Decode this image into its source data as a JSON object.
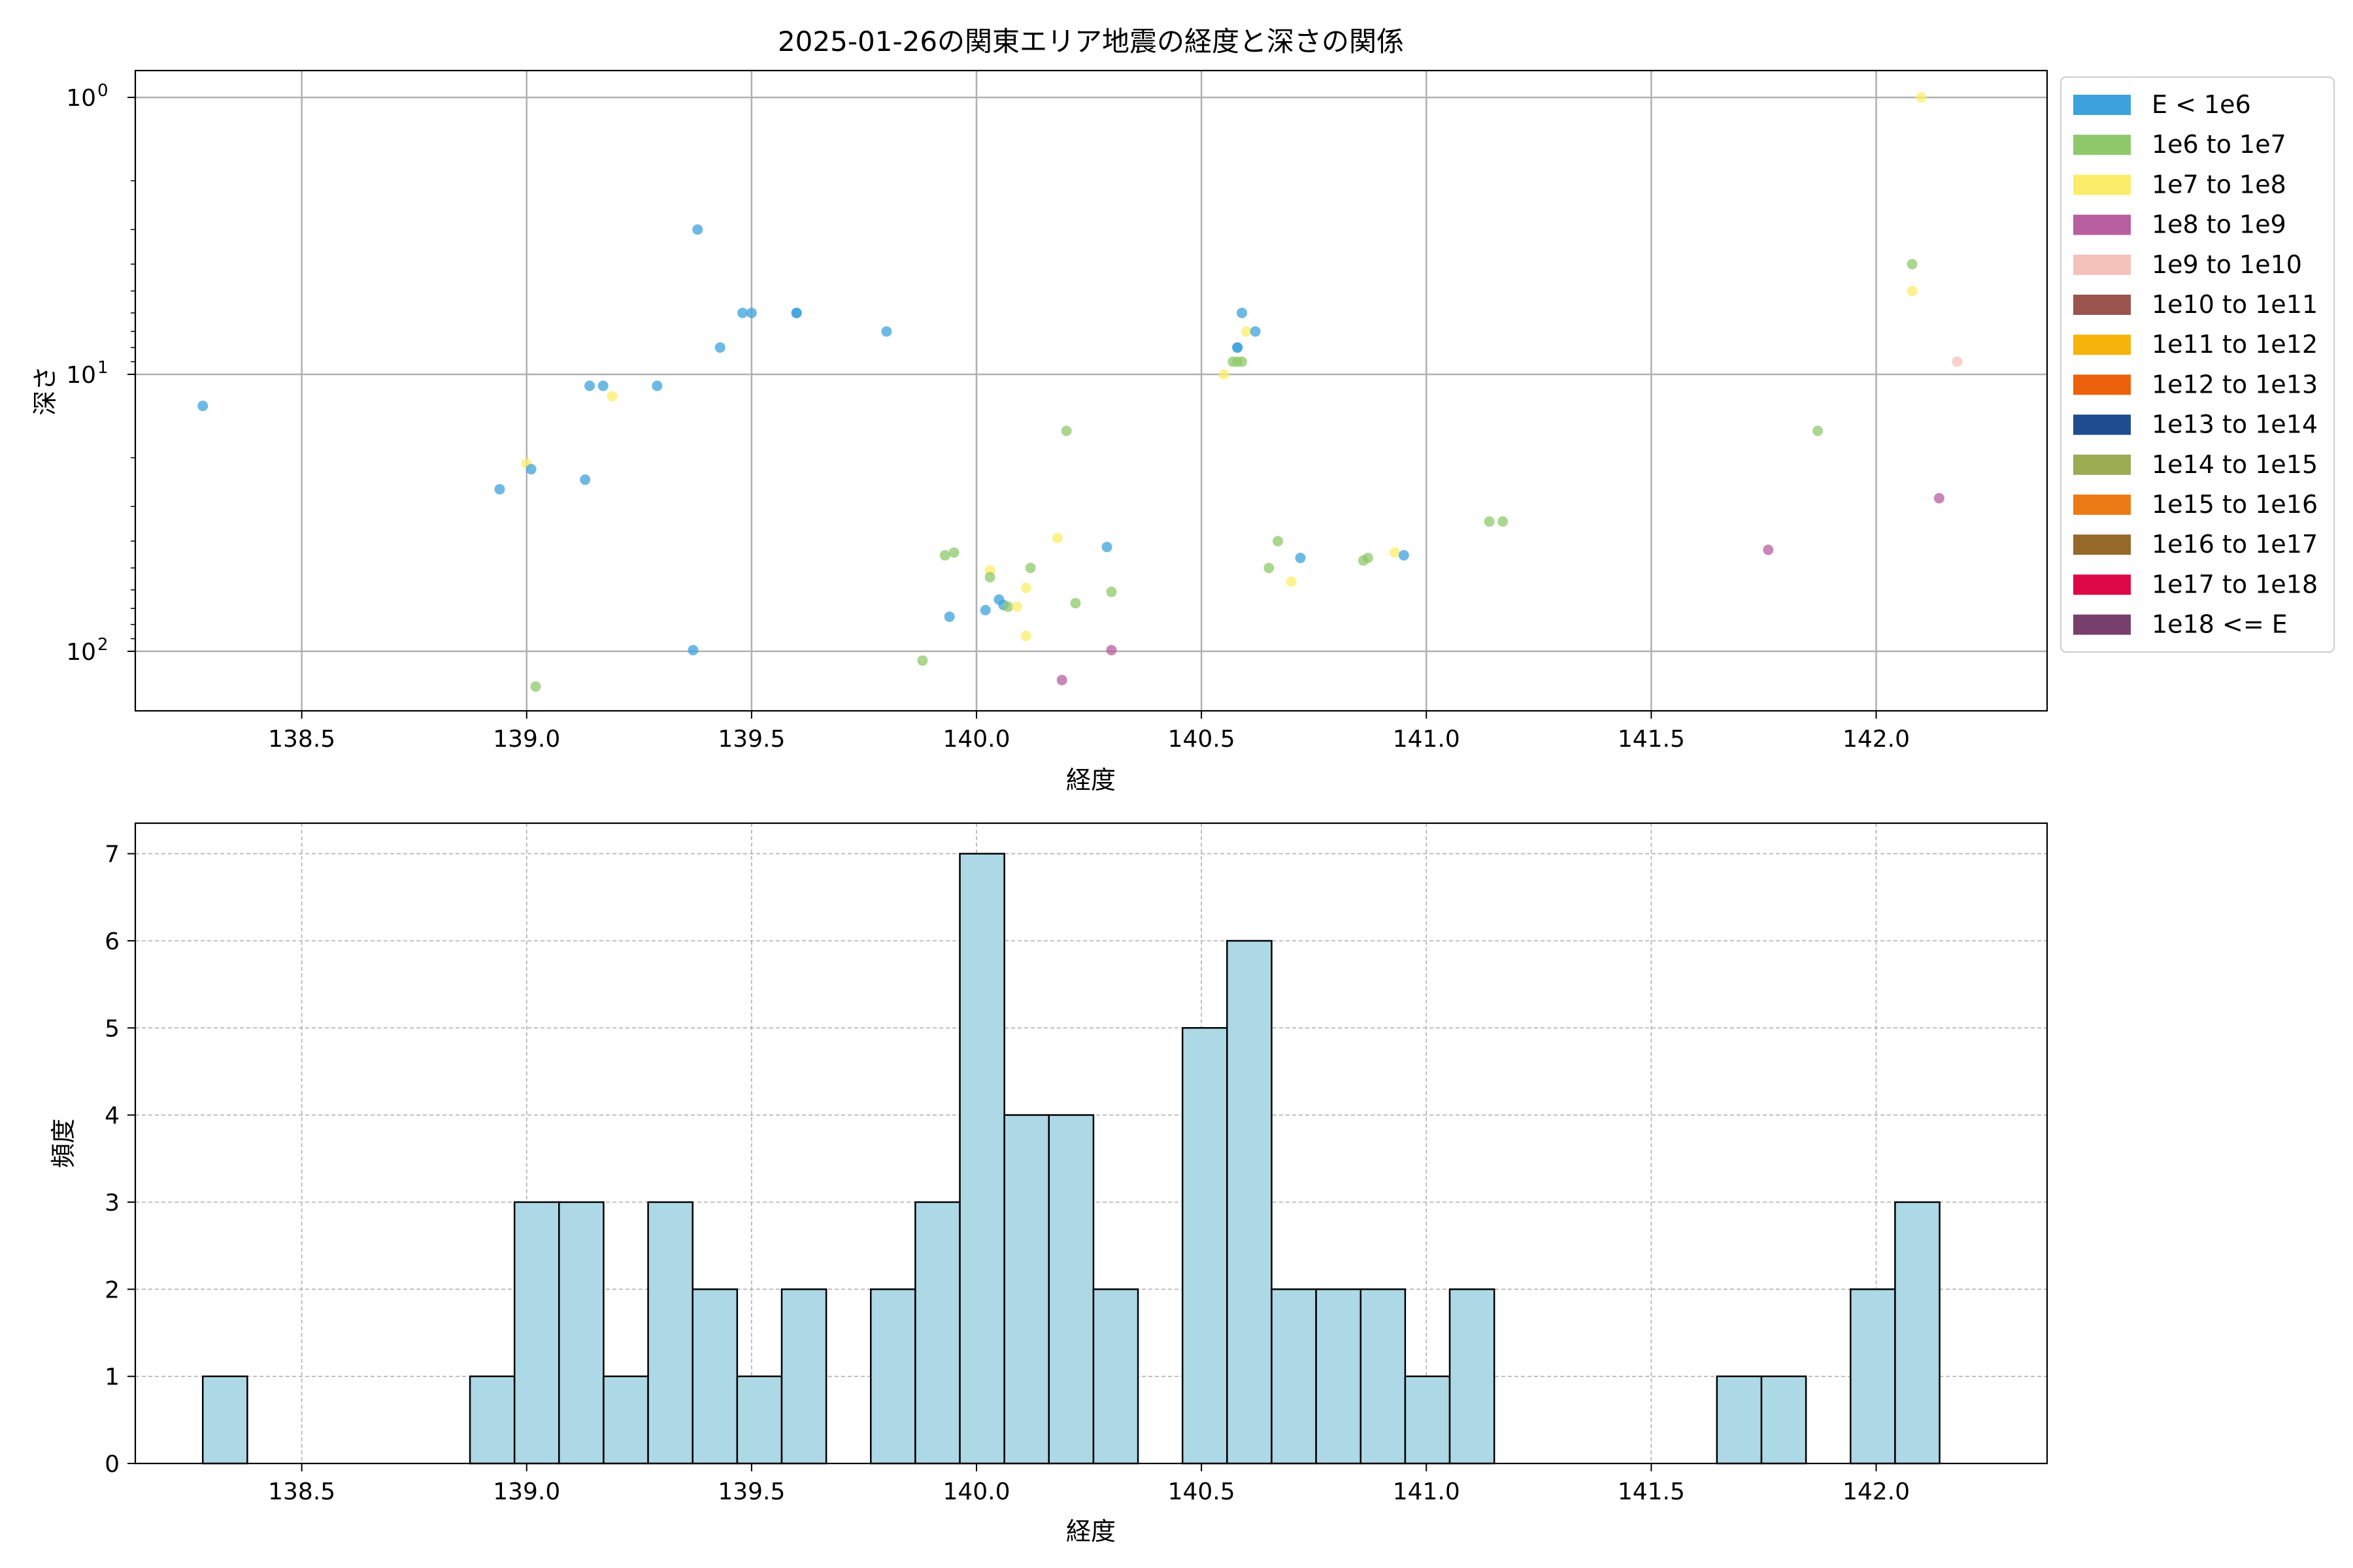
{
  "chart_data": [
    {
      "type": "scatter",
      "title": "2025-01-26の関東エリア地震の経度と深さの関係",
      "xlabel": "経度",
      "ylabel": "深さ",
      "x_ticks": [
        "138.5",
        "139.0",
        "139.5",
        "140.0",
        "140.5",
        "141.0",
        "141.5",
        "142.0"
      ],
      "xlim": [
        138.13,
        142.38
      ],
      "y_scale": "log",
      "y_inverted": true,
      "ylim": [
        164,
        0.8
      ],
      "y_ticks": [
        {
          "value": 1,
          "base": "10",
          "exp": "0"
        },
        {
          "value": 10,
          "base": "10",
          "exp": "1"
        },
        {
          "value": 100,
          "base": "10",
          "exp": "2"
        }
      ],
      "grid": true,
      "legend_position": "outside-right",
      "legend": [
        {
          "label": "E < 1e6",
          "color": "#3ca1dc"
        },
        {
          "label": "1e6 to 1e7",
          "color": "#8fc86b"
        },
        {
          "label": "1e7 to 1e8",
          "color": "#fbed6a"
        },
        {
          "label": "1e8 to 1e9",
          "color": "#b75fa0"
        },
        {
          "label": "1e9 to 1e10",
          "color": "#f5c1bb"
        },
        {
          "label": "1e10 to 1e11",
          "color": "#9b534d"
        },
        {
          "label": "1e11 to 1e12",
          "color": "#f6b30c"
        },
        {
          "label": "1e12 to 1e13",
          "color": "#ec610b"
        },
        {
          "label": "1e13 to 1e14",
          "color": "#1e4c91"
        },
        {
          "label": "1e14 to 1e15",
          "color": "#9bac52"
        },
        {
          "label": "1e15 to 1e16",
          "color": "#ed7b15"
        },
        {
          "label": "1e16 to 1e17",
          "color": "#94692a"
        },
        {
          "label": "1e17 to 1e18",
          "color": "#dd0845"
        },
        {
          "label": "1e18 <= E",
          "color": "#77406c"
        }
      ],
      "points": [
        {
          "x": 138.28,
          "y": 13,
          "c": 0
        },
        {
          "x": 138.94,
          "y": 26,
          "c": 0
        },
        {
          "x": 139.0,
          "y": 21,
          "c": 2
        },
        {
          "x": 139.01,
          "y": 22,
          "c": 0
        },
        {
          "x": 139.02,
          "y": 134,
          "c": 1
        },
        {
          "x": 139.13,
          "y": 24,
          "c": 0
        },
        {
          "x": 139.14,
          "y": 11,
          "c": 0
        },
        {
          "x": 139.17,
          "y": 11,
          "c": 0
        },
        {
          "x": 139.19,
          "y": 12,
          "c": 2
        },
        {
          "x": 139.29,
          "y": 11,
          "c": 0
        },
        {
          "x": 139.37,
          "y": 99,
          "c": 0
        },
        {
          "x": 139.38,
          "y": 3,
          "c": 0
        },
        {
          "x": 139.43,
          "y": 8,
          "c": 0
        },
        {
          "x": 139.48,
          "y": 6,
          "c": 0
        },
        {
          "x": 139.5,
          "y": 6,
          "c": 0
        },
        {
          "x": 139.6,
          "y": 6,
          "c": 0
        },
        {
          "x": 139.6,
          "y": 6,
          "c": 0
        },
        {
          "x": 139.8,
          "y": 7,
          "c": 0
        },
        {
          "x": 139.88,
          "y": 108,
          "c": 1
        },
        {
          "x": 139.93,
          "y": 45,
          "c": 1
        },
        {
          "x": 139.94,
          "y": 75,
          "c": 0
        },
        {
          "x": 139.95,
          "y": 44,
          "c": 1
        },
        {
          "x": 140.02,
          "y": 71,
          "c": 0
        },
        {
          "x": 140.03,
          "y": 51,
          "c": 2
        },
        {
          "x": 140.03,
          "y": 54,
          "c": 1
        },
        {
          "x": 140.05,
          "y": 65,
          "c": 0
        },
        {
          "x": 140.06,
          "y": 68,
          "c": 0
        },
        {
          "x": 140.07,
          "y": 69,
          "c": 1
        },
        {
          "x": 140.09,
          "y": 69,
          "c": 2
        },
        {
          "x": 140.11,
          "y": 59,
          "c": 2
        },
        {
          "x": 140.11,
          "y": 88,
          "c": 2
        },
        {
          "x": 140.12,
          "y": 50,
          "c": 1
        },
        {
          "x": 140.18,
          "y": 39,
          "c": 2
        },
        {
          "x": 140.19,
          "y": 127,
          "c": 3
        },
        {
          "x": 140.2,
          "y": 16,
          "c": 1
        },
        {
          "x": 140.22,
          "y": 67,
          "c": 1
        },
        {
          "x": 140.29,
          "y": 42,
          "c": 0
        },
        {
          "x": 140.3,
          "y": 99,
          "c": 3
        },
        {
          "x": 140.3,
          "y": 61,
          "c": 1
        },
        {
          "x": 140.55,
          "y": 10,
          "c": 2
        },
        {
          "x": 140.57,
          "y": 9,
          "c": 1
        },
        {
          "x": 140.58,
          "y": 9,
          "c": 1
        },
        {
          "x": 140.58,
          "y": 8,
          "c": 0
        },
        {
          "x": 140.58,
          "y": 8,
          "c": 0
        },
        {
          "x": 140.59,
          "y": 6,
          "c": 0
        },
        {
          "x": 140.59,
          "y": 9,
          "c": 1
        },
        {
          "x": 140.6,
          "y": 7,
          "c": 2
        },
        {
          "x": 140.62,
          "y": 7,
          "c": 0
        },
        {
          "x": 140.65,
          "y": 50,
          "c": 1
        },
        {
          "x": 140.67,
          "y": 40,
          "c": 1
        },
        {
          "x": 140.7,
          "y": 56,
          "c": 2
        },
        {
          "x": 140.72,
          "y": 46,
          "c": 0
        },
        {
          "x": 140.86,
          "y": 47,
          "c": 1
        },
        {
          "x": 140.87,
          "y": 46,
          "c": 1
        },
        {
          "x": 140.93,
          "y": 44,
          "c": 2
        },
        {
          "x": 140.95,
          "y": 45,
          "c": 0
        },
        {
          "x": 141.14,
          "y": 34,
          "c": 1
        },
        {
          "x": 141.17,
          "y": 34,
          "c": 1
        },
        {
          "x": 141.76,
          "y": 43,
          "c": 3
        },
        {
          "x": 141.87,
          "y": 16,
          "c": 1
        },
        {
          "x": 142.08,
          "y": 4,
          "c": 1
        },
        {
          "x": 142.08,
          "y": 5,
          "c": 2
        },
        {
          "x": 142.1,
          "y": 1,
          "c": 2
        },
        {
          "x": 142.14,
          "y": 28,
          "c": 3
        },
        {
          "x": 142.18,
          "y": 9,
          "c": 4
        }
      ]
    },
    {
      "type": "bar",
      "subtype": "histogram",
      "xlabel": "経度",
      "ylabel": "頻度",
      "x_ticks": [
        "138.5",
        "139.0",
        "139.5",
        "140.0",
        "140.5",
        "141.0",
        "141.5",
        "142.0"
      ],
      "y_ticks": [
        "0",
        "1",
        "2",
        "3",
        "4",
        "5",
        "6",
        "7"
      ],
      "xlim": [
        138.13,
        142.38
      ],
      "ylim": [
        0,
        7.35
      ],
      "bin_start": 138.28,
      "bin_width": 0.099,
      "bar_color": "#add8e6",
      "edge_color": "#000000",
      "grid": true,
      "values": [
        1,
        0,
        0,
        0,
        0,
        0,
        1,
        3,
        3,
        1,
        3,
        2,
        1,
        2,
        0,
        2,
        3,
        7,
        4,
        4,
        2,
        0,
        5,
        6,
        2,
        2,
        2,
        1,
        2,
        0,
        0,
        0,
        0,
        0,
        1,
        1,
        0,
        2,
        3
      ]
    }
  ]
}
